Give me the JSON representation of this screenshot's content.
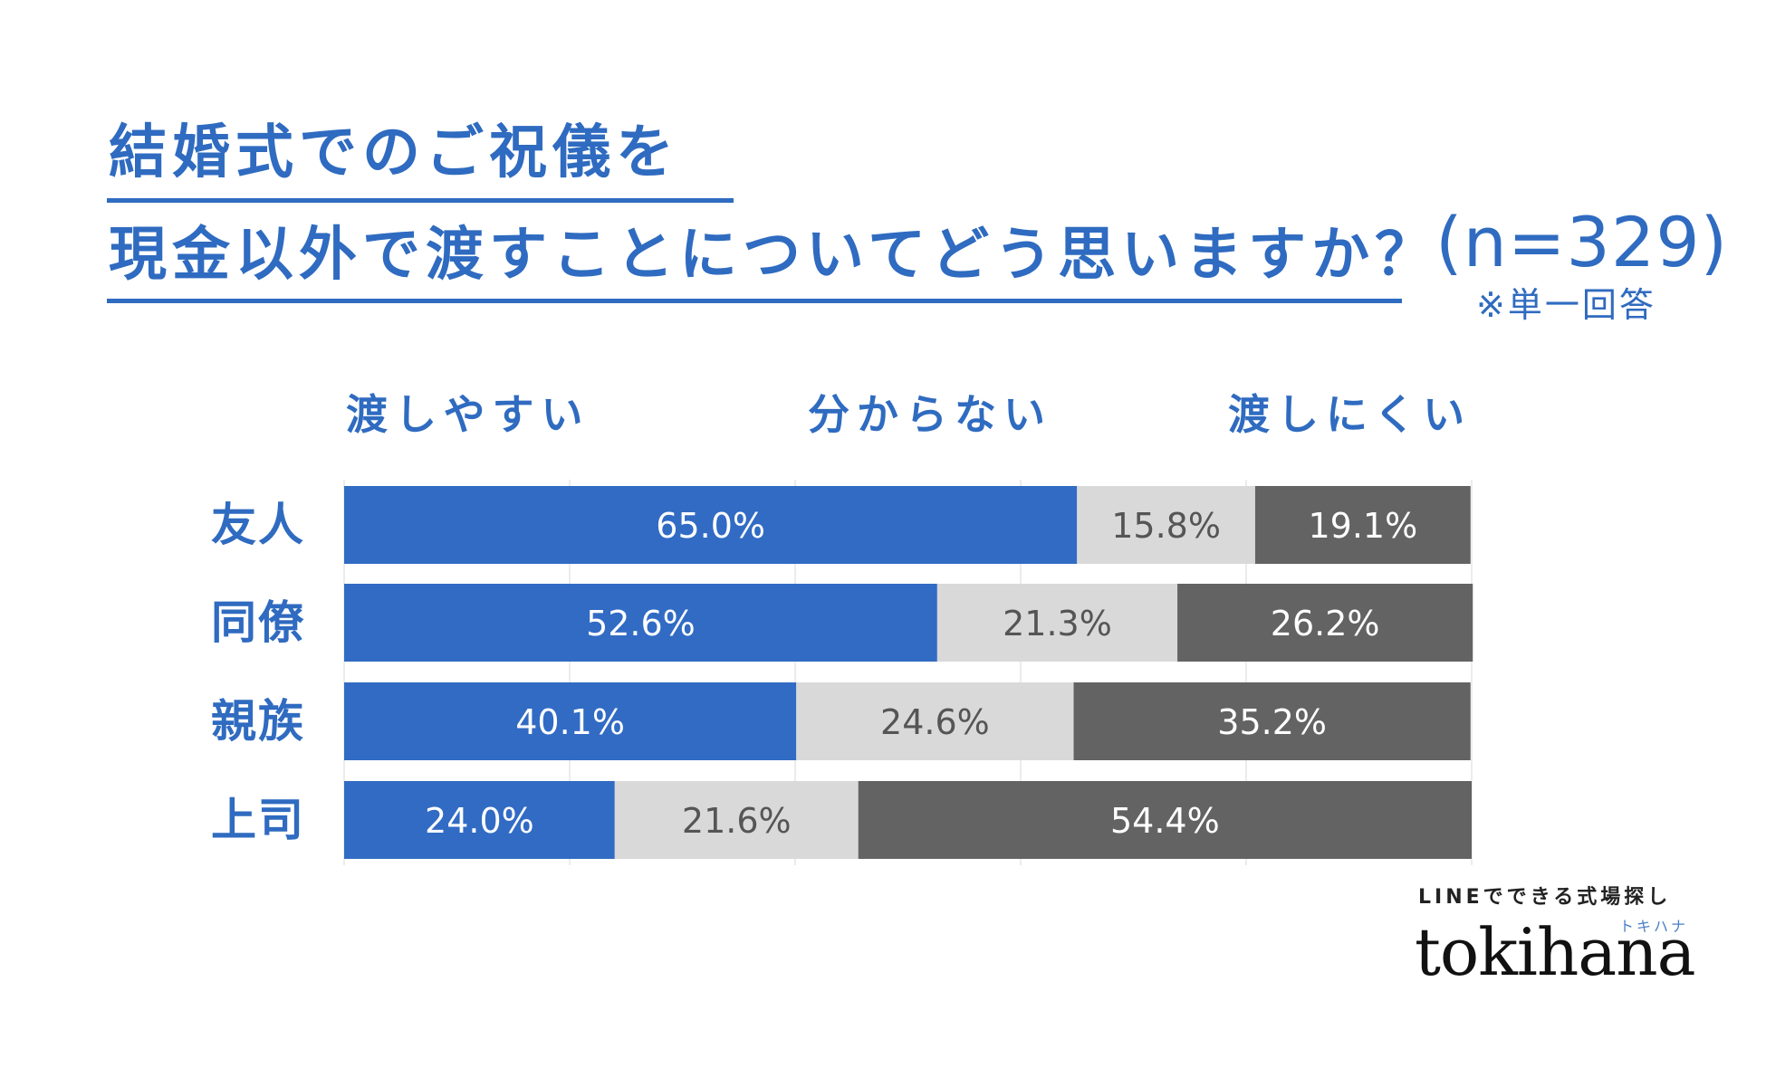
{
  "header": {
    "title_line1": "結婚式でのご祝儀を",
    "title_line2": "現金以外で渡すことについてどう思いますか？",
    "sample": "(n=329)",
    "note": "※単一回答"
  },
  "colors": {
    "easy": "#316bc4",
    "unsure": "#d9d9d9",
    "hard": "#636363",
    "title": "#2f6bc0"
  },
  "chart_data": {
    "type": "bar",
    "orientation": "horizontal-stacked-100",
    "title": "結婚式でのご祝儀を現金以外で渡すことについてどう思いますか？",
    "categories": [
      "友人",
      "同僚",
      "親族",
      "上司"
    ],
    "series": [
      {
        "name": "渡しやすい",
        "values": [
          65.0,
          52.6,
          40.1,
          24.0
        ]
      },
      {
        "name": "分からない",
        "values": [
          15.8,
          21.3,
          24.6,
          21.6
        ]
      },
      {
        "name": "渡しにくい",
        "values": [
          19.1,
          26.2,
          35.2,
          54.4
        ]
      }
    ],
    "value_labels": [
      [
        "65.0%",
        "15.8%",
        "19.1%"
      ],
      [
        "52.6%",
        "21.3%",
        "26.2%"
      ],
      [
        "40.1%",
        "24.6%",
        "35.2%"
      ],
      [
        "24.0%",
        "21.6%",
        "54.4%"
      ]
    ],
    "xlim": [
      0,
      100
    ],
    "grid": true,
    "legend_position": "top"
  },
  "brand": {
    "tagline": "LINEでできる式場探し",
    "sub": "トキハナ",
    "logo": "tokihana"
  }
}
